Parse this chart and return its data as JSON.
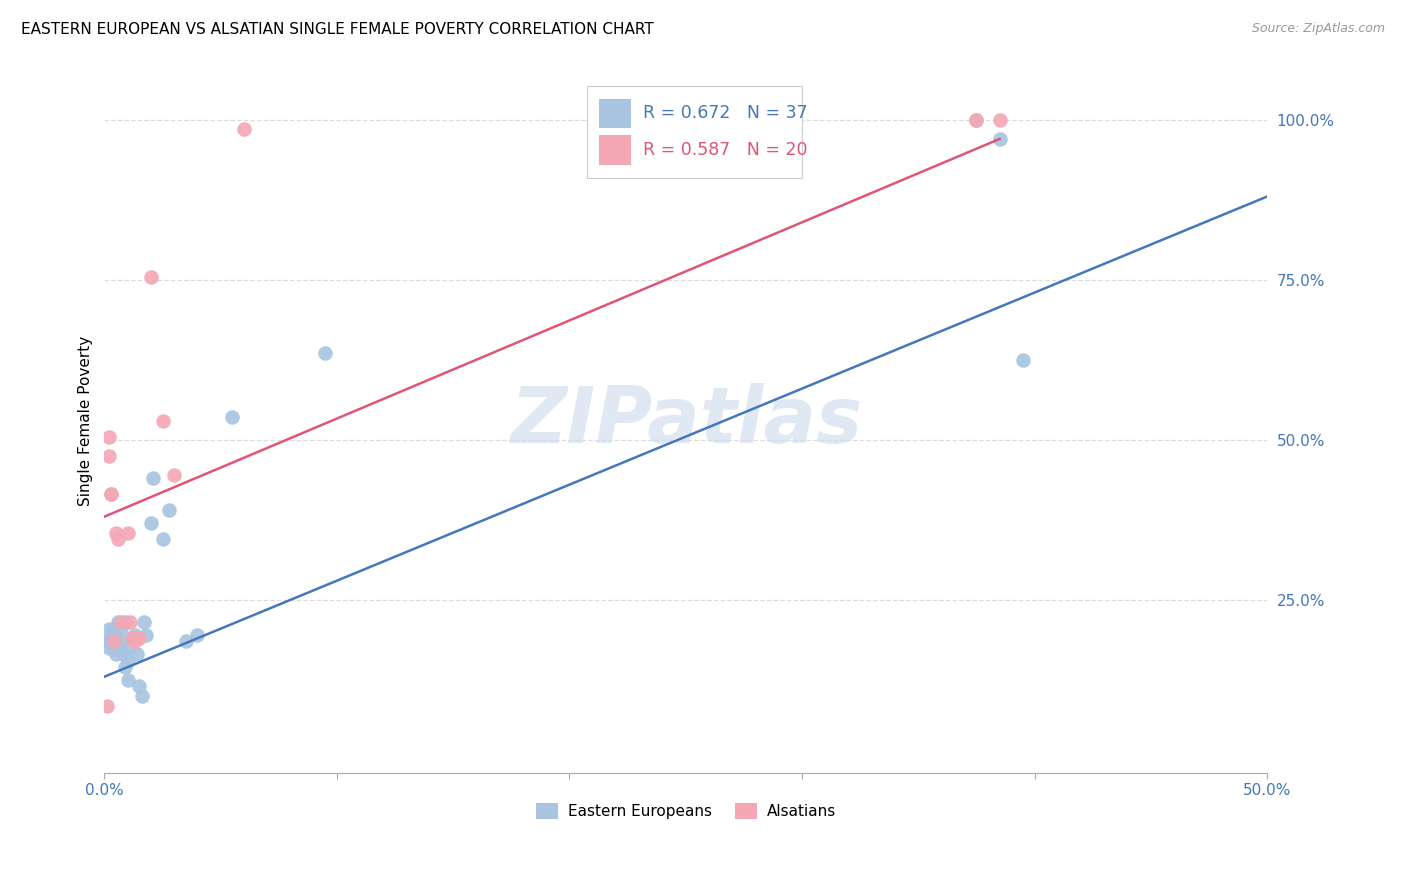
{
  "title": "EASTERN EUROPEAN VS ALSATIAN SINGLE FEMALE POVERTY CORRELATION CHART",
  "source": "Source: ZipAtlas.com",
  "ylabel": "Single Female Poverty",
  "xlim": [
    0.0,
    0.5
  ],
  "ylim": [
    -0.02,
    1.08
  ],
  "xtick_labels": [
    "0.0%",
    "",
    "",
    "",
    "",
    "50.0%"
  ],
  "xtick_vals": [
    0.0,
    0.1,
    0.2,
    0.3,
    0.4,
    0.5
  ],
  "ytick_labels": [
    "25.0%",
    "50.0%",
    "75.0%",
    "100.0%"
  ],
  "ytick_vals": [
    0.25,
    0.5,
    0.75,
    1.0
  ],
  "blue_R": 0.672,
  "blue_N": 37,
  "pink_R": 0.587,
  "pink_N": 20,
  "blue_color": "#a8c4e0",
  "pink_color": "#f4a7b4",
  "blue_line_color": "#4477bb",
  "pink_line_color": "#e05575",
  "watermark_color": "#ccd9ee",
  "blue_points_x": [
    0.001,
    0.002,
    0.002,
    0.003,
    0.003,
    0.004,
    0.004,
    0.005,
    0.005,
    0.006,
    0.006,
    0.007,
    0.007,
    0.008,
    0.009,
    0.009,
    0.01,
    0.01,
    0.011,
    0.012,
    0.013,
    0.014,
    0.015,
    0.016,
    0.017,
    0.018,
    0.02,
    0.021,
    0.025,
    0.028,
    0.035,
    0.04,
    0.055,
    0.095,
    0.375,
    0.385,
    0.395
  ],
  "blue_points_y": [
    0.185,
    0.205,
    0.175,
    0.19,
    0.185,
    0.205,
    0.175,
    0.195,
    0.165,
    0.175,
    0.215,
    0.205,
    0.185,
    0.165,
    0.145,
    0.215,
    0.155,
    0.125,
    0.175,
    0.19,
    0.195,
    0.165,
    0.115,
    0.1,
    0.215,
    0.195,
    0.37,
    0.44,
    0.345,
    0.39,
    0.185,
    0.195,
    0.535,
    0.635,
    1.0,
    0.97,
    0.625
  ],
  "pink_points_x": [
    0.001,
    0.002,
    0.002,
    0.003,
    0.003,
    0.004,
    0.005,
    0.006,
    0.007,
    0.01,
    0.011,
    0.012,
    0.013,
    0.015,
    0.02,
    0.025,
    0.03,
    0.06,
    0.375,
    0.385
  ],
  "pink_points_y": [
    0.085,
    0.505,
    0.475,
    0.415,
    0.415,
    0.185,
    0.355,
    0.345,
    0.215,
    0.355,
    0.215,
    0.19,
    0.185,
    0.19,
    0.755,
    0.53,
    0.445,
    0.985,
    1.0,
    1.0
  ],
  "blue_line_x0": 0.0,
  "blue_line_y0": 0.13,
  "blue_line_x1": 0.5,
  "blue_line_y1": 0.88,
  "pink_line_x0": 0.0,
  "pink_line_y0": 0.38,
  "pink_line_x1": 0.385,
  "pink_line_y1": 0.97,
  "legend_labels": [
    "Eastern Europeans",
    "Alsatians"
  ]
}
